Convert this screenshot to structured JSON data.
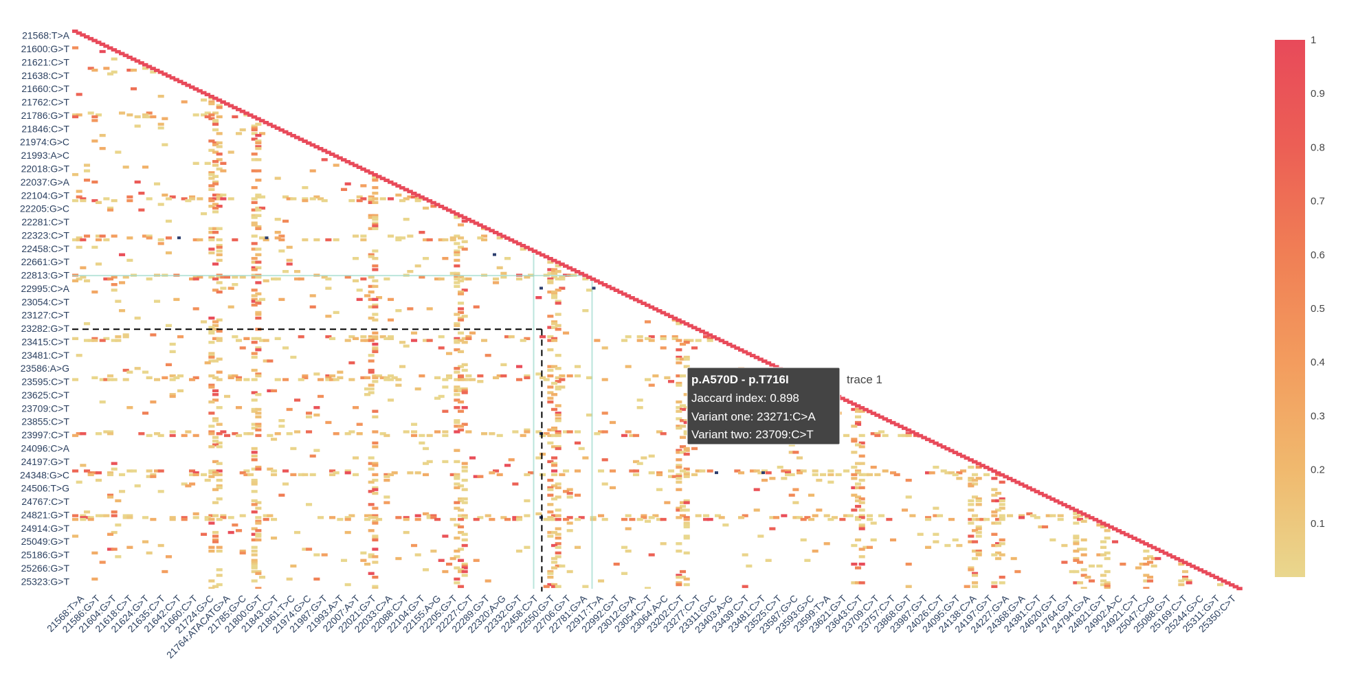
{
  "chart_data": {
    "type": "heatmap",
    "colorscale": [
      "#e9d78e",
      "#f0b96e",
      "#f39c5e",
      "#f07f55",
      "#ec5f55",
      "#e84a5a"
    ],
    "zlim": [
      0,
      1
    ],
    "colorbar_ticks": [
      "1",
      "0.9",
      "0.8",
      "0.7",
      "0.6",
      "0.5",
      "0.4",
      "0.3",
      "0.2",
      "0.1"
    ],
    "colorbar_tick_values": [
      1,
      0.9,
      0.8,
      0.7,
      0.6,
      0.5,
      0.4,
      0.3,
      0.2,
      0.1
    ],
    "y_tick_labels": [
      "21568:T>A",
      "21600:G>T",
      "21621:C>T",
      "21638:C>T",
      "21660:C>T",
      "21762:C>T",
      "21786:G>T",
      "21846:C>T",
      "21974:G>C",
      "21993:A>C",
      "22018:G>T",
      "22037:G>A",
      "22104:G>T",
      "22205:G>C",
      "22281:C>T",
      "22323:C>T",
      "22458:C>T",
      "22661:G>T",
      "22813:G>T",
      "22995:C>A",
      "23054:C>T",
      "23127:C>T",
      "23282:G>T",
      "23415:C>T",
      "23481:C>T",
      "23586:A>G",
      "23595:C>T",
      "23625:C>T",
      "23709:C>T",
      "23855:C>T",
      "23997:C>T",
      "24096:C>A",
      "24197:G>T",
      "24348:G>C",
      "24506:T>G",
      "24767:C>T",
      "24821:G>T",
      "24914:G>T",
      "25049:G>T",
      "25186:G>T",
      "25266:G>T",
      "25323:G>T"
    ],
    "x_tick_labels": [
      "21568:T>A",
      "21586:G>T",
      "21604:G>T",
      "21618:C>T",
      "21624:G>T",
      "21635:C>T",
      "21642:C>T",
      "21660:C>T",
      "21724:G>C",
      "21764:ATACATG>A",
      "21785:G>C",
      "21800:G>T",
      "21843:C>T",
      "21861:T>C",
      "21974:G>C",
      "21987:G>T",
      "21993:A>T",
      "22007:A>T",
      "22021:G>T",
      "22033:C>A",
      "22088:C>T",
      "22104:G>T",
      "22155:A>G",
      "22205:G>T",
      "22227:C>T",
      "22289:G>T",
      "22320:A>G",
      "22332:G>T",
      "22458:C>T",
      "22550:G>T",
      "22706:G>T",
      "22781:G>A",
      "22917:T>A",
      "22992:G>T",
      "23012:G>A",
      "23054:C>T",
      "23064:A>C",
      "23202:C>T",
      "23277:C>T",
      "23311:G>C",
      "23403:A>G",
      "23439:C>T",
      "23481:C>T",
      "23525:C>T",
      "23587:G>C",
      "23593:G>C",
      "23599:T>A",
      "23621:G>T",
      "23643:C>T",
      "23709:C>T",
      "23757:C>T",
      "23868:G>T",
      "23987:G>T",
      "24026:C>T",
      "24095:G>T",
      "24138:C>A",
      "24197:G>T",
      "24227:G>A",
      "24368:G>A",
      "24381:C>T",
      "24620:G>T",
      "24764:G>T",
      "24794:G>A",
      "24821:G>T",
      "24902:A>C",
      "24921:C>T",
      "25047:C>G",
      "25088:G>T",
      "25169:C>T",
      "25244:G>C",
      "25311:G>T",
      "25350:C>T"
    ],
    "diagonal_value": 1,
    "hover": {
      "title": "p.A570D - p.T716I",
      "jaccard_line": "Jaccard index: 0.898",
      "variant_one_line": "Variant one: 23271:C>A",
      "variant_two_line": "Variant two: 23709:C>T",
      "trace_name": "trace 1",
      "x_variant": "23271:C>A",
      "y_variant": "23709:C>T",
      "value": 0.898
    }
  }
}
